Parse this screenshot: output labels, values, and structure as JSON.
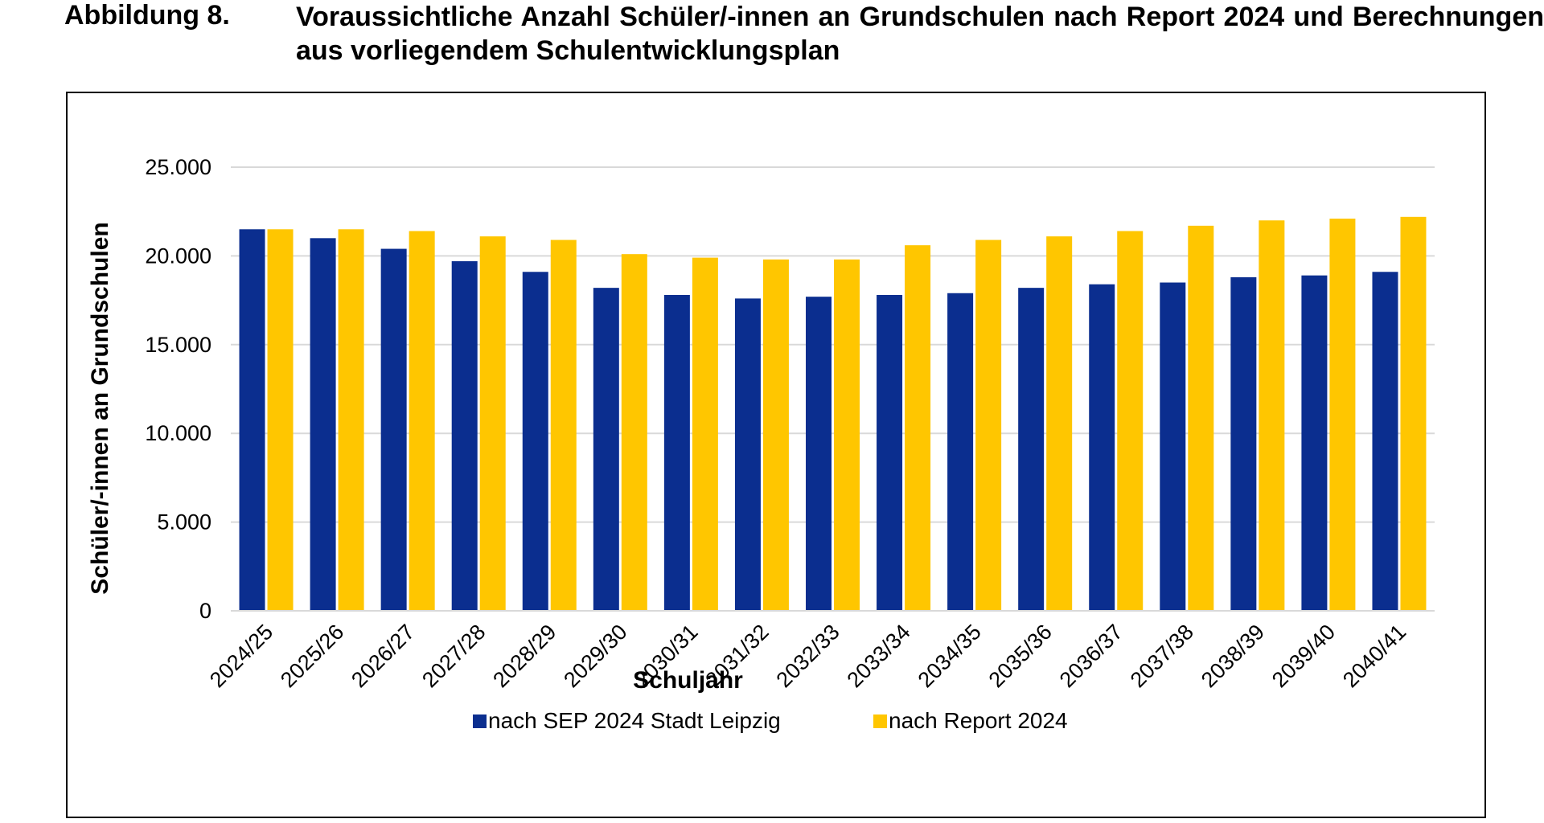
{
  "caption": {
    "label": "Abbildung 8.",
    "title": "Voraussichtliche Anzahl Schüler/-innen an Grundschulen nach Report 2024 und Berechnungen aus vorliegendem Schulentwicklungsplan"
  },
  "chart_data": {
    "type": "bar",
    "title": "",
    "xlabel": "Schuljahr",
    "ylabel": "Schüler/-innen an Grundschulen",
    "ylim": [
      0,
      25000
    ],
    "yticks": [
      0,
      5000,
      10000,
      15000,
      20000,
      25000
    ],
    "ytick_labels": [
      "0",
      "5.000",
      "10.000",
      "15.000",
      "20.000",
      "25.000"
    ],
    "grid": true,
    "legend_position": "bottom",
    "categories": [
      "2024/25",
      "2025/26",
      "2026/27",
      "2027/28",
      "2028/29",
      "2029/30",
      "2030/31",
      "2031/32",
      "2032/33",
      "2033/34",
      "2034/35",
      "2035/36",
      "2036/37",
      "2037/38",
      "2038/39",
      "2039/40",
      "2040/41"
    ],
    "series": [
      {
        "name": "nach SEP 2024 Stadt Leipzig",
        "color": "#0b2e8f",
        "values": [
          21500,
          21000,
          20400,
          19700,
          19100,
          18200,
          17800,
          17600,
          17700,
          17800,
          17900,
          18200,
          18400,
          18500,
          18800,
          18900,
          19100
        ]
      },
      {
        "name": "nach Report 2024",
        "color": "#ffc600",
        "values": [
          21500,
          21500,
          21400,
          21100,
          20900,
          20100,
          19900,
          19800,
          19800,
          20600,
          20900,
          21100,
          21400,
          21700,
          22000,
          22100,
          22200
        ]
      }
    ]
  }
}
